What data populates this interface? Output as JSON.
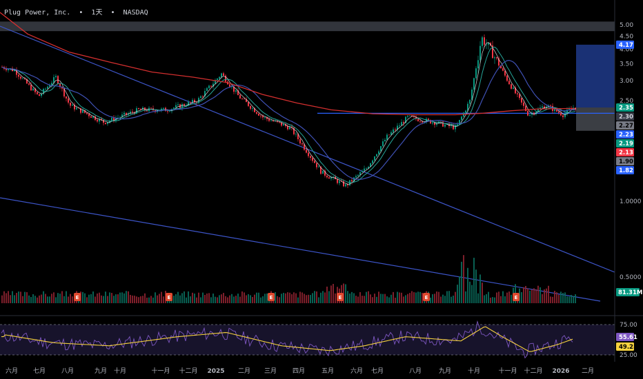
{
  "header": {
    "symbol": "Plug Power, Inc.",
    "interval": "1天",
    "exchange": "NASDAQ",
    "separator": "•"
  },
  "chart_data": {
    "type": "candlestick",
    "price_axis": {
      "scale": "log",
      "range": [
        0.35,
        5.6
      ],
      "ticks": [
        "5.00",
        "4.50",
        "4.00",
        "3.50",
        "3.00",
        "2.50",
        "1.0000",
        "0.5000"
      ],
      "tick_values": [
        5.0,
        4.5,
        4.0,
        3.5,
        3.0,
        2.5,
        1.0,
        0.5
      ]
    },
    "time_axis": {
      "labels": [
        "六月",
        "七月",
        "八月",
        "九月",
        "十月",
        "十一月",
        "十二月",
        "2025",
        "二月",
        "三月",
        "四月",
        "五月",
        "六月",
        "七月",
        "八月",
        "九月",
        "十月",
        "十一月",
        "十二月",
        "2026",
        "二月"
      ],
      "bold": [
        "2025",
        "2026"
      ]
    },
    "price_badges": [
      {
        "value": "4.17",
        "color": "#2962ff",
        "text_color": "#ffffff"
      },
      {
        "value": "2.35",
        "color": "#089981",
        "text_color": "#ffffff"
      },
      {
        "value": "2.30",
        "color": "#363a45",
        "text_color": "#d1d4dc"
      },
      {
        "value": "2.27",
        "color": "#787b86",
        "text_color": "#000000"
      },
      {
        "value": "2.23",
        "color": "#2962ff",
        "text_color": "#ffffff"
      },
      {
        "value": "2.19",
        "color": "#089981",
        "text_color": "#ffffff"
      },
      {
        "value": "2.13",
        "color": "#f23645",
        "text_color": "#ffffff"
      },
      {
        "value": "1.90",
        "color": "#787b86",
        "text_color": "#000000"
      },
      {
        "value": "1.82",
        "color": "#2962ff",
        "text_color": "#ffffff"
      }
    ],
    "volume_badge": {
      "value": "81.31M",
      "color": "#089981",
      "text_color": "#ffffff"
    },
    "earnings_marker": "E",
    "earnings_count": 6,
    "resistance_zone": [
      4.72,
      5.15
    ],
    "horizontal_level": 2.23,
    "position_box": {
      "entry": 2.35,
      "target": 4.17,
      "stop": 1.9
    },
    "rsi": {
      "ticks": [
        "75.00",
        "25.00"
      ],
      "levels": [
        75,
        25
      ],
      "rsi_value": "55.61",
      "ma_value": "49.25",
      "rsi_color": "#7e57c2",
      "ma_color": "#f7d23e"
    },
    "colors": {
      "up": "#089981",
      "down": "#f23645",
      "ma_long": "#d32f2f",
      "ma_mid": "#3f51b5",
      "ma_short": "#26a69a",
      "ma_fast": "#e0e0e0",
      "trendline": "#3d55c9"
    }
  }
}
